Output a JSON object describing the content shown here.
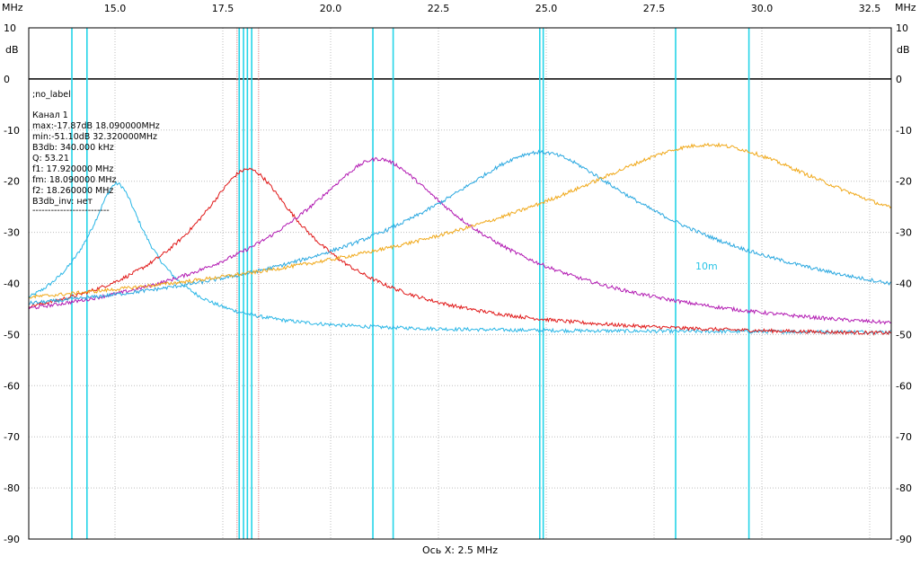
{
  "chart_data": {
    "type": "line",
    "x_unit": "MHz",
    "y_unit": "dB",
    "xlim": [
      13.0,
      33.0
    ],
    "ylim": [
      -90,
      10
    ],
    "x_ticks": [
      "15.0",
      "17.5",
      "20.0",
      "22.5",
      "25.0",
      "27.5",
      "30.0",
      "32.5"
    ],
    "y_ticks": [
      "10",
      "0",
      "-10",
      "-20",
      "-30",
      "-40",
      "-50",
      "-60",
      "-70",
      "-80",
      "-90"
    ],
    "x_axis_caption": "Ось X: 2.5 MHz",
    "grid": true,
    "info_panel": [
      ";no_label",
      "",
      "Канал 1",
      "max:-17.87dB 18.090000MHz",
      "min:-51.10dB 32.320000MHz",
      "B3db: 340.000 kHz",
      "Q: 53.21",
      "f1: 17.920000 MHz",
      "fm: 18.090000 MHz",
      "f2: 18.260000 MHz",
      "B3db_inv: нет",
      "-------------------------"
    ],
    "annotation": "10m",
    "marker_lines_mhz": [
      14.0,
      14.35,
      17.88,
      17.98,
      18.07,
      18.17,
      20.98,
      21.45,
      24.85,
      24.93,
      28.0,
      29.7
    ],
    "series": [
      {
        "color": "#29b6e6",
        "peak_x": 15.05,
        "peak_y": -20.8,
        "half_width": 0.42,
        "left_base": -48.7,
        "right_base": -49.6,
        "x_start": 13.0,
        "x_end": 33.0
      },
      {
        "color": "#e01818",
        "peak_x": 18.09,
        "peak_y": -17.87,
        "half_width": 0.75,
        "left_base": -49.7,
        "right_base": -50.6,
        "x_start": 13.0,
        "x_end": 33.0
      },
      {
        "color": "#b21ab2",
        "peak_x": 21.1,
        "peak_y": -15.8,
        "half_width": 1.1,
        "left_base": -51.1,
        "right_base": -51.2,
        "x_start": 13.0,
        "x_end": 33.0
      },
      {
        "color": "#2aa8e0",
        "peak_x": 24.85,
        "peak_y": -14.5,
        "half_width": 1.55,
        "left_base": -49.8,
        "right_base": -49.3,
        "x_start": 13.0,
        "x_end": 33.0
      },
      {
        "color": "#f0a818",
        "peak_x": 28.75,
        "peak_y": -13.0,
        "half_width": 2.3,
        "left_base": -51.5,
        "right_base": -48.2,
        "x_start": 13.0,
        "x_end": 33.0
      }
    ]
  }
}
